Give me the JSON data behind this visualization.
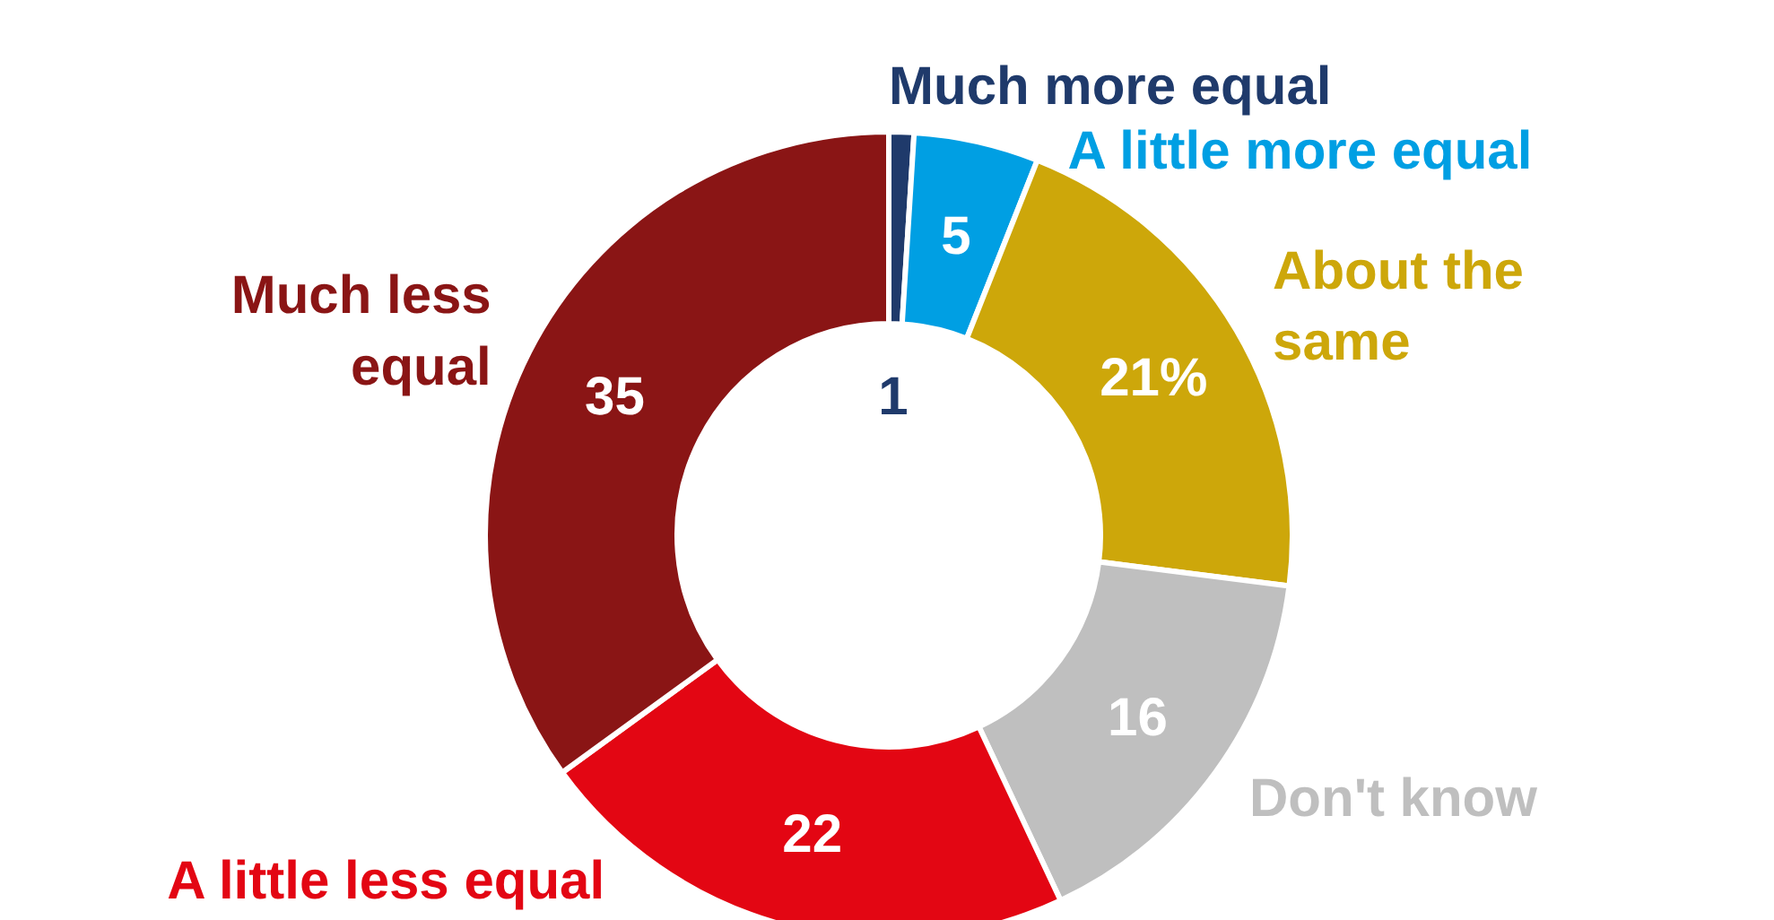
{
  "chart_data": {
    "type": "donut",
    "categories": [
      "Much more equal",
      "A little more equal",
      "About the\nsame",
      "Don't know",
      "A little less equal",
      "Much less\nequal"
    ],
    "values": [
      1,
      5,
      21,
      16,
      22,
      35
    ],
    "colors": [
      "#1f3a6b",
      "#009fe3",
      "#cda70a",
      "#bfbfbf",
      "#e30613",
      "#8a1515"
    ],
    "value_labels": [
      "1",
      "5",
      "21%",
      "16",
      "22",
      "35"
    ]
  }
}
